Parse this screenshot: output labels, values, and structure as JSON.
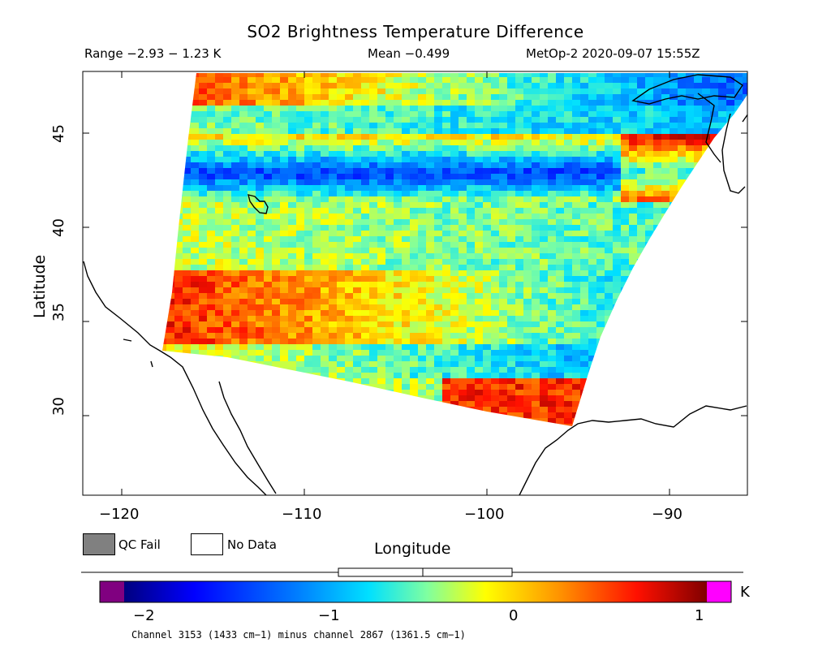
{
  "title": "SO2 Brightness Temperature Difference",
  "subtitle": {
    "range": "Range −2.93 − 1.23 K",
    "mean": "Mean −0.499",
    "satellite_time": "MetOp-2 2020-09-07 15:55Z"
  },
  "axes": {
    "xlabel": "Longitude",
    "ylabel": "Latitude",
    "x_ticks": [
      "−120",
      "−110",
      "−100",
      "−90"
    ],
    "y_ticks": [
      "30",
      "35",
      "40",
      "45"
    ]
  },
  "legend": {
    "qc_fail": "QC Fail",
    "no_data": "No Data",
    "qc_fail_color": "#808080",
    "no_data_color": "#ffffff"
  },
  "colorbar": {
    "unit": "K",
    "tick_labels": [
      "−2",
      "−1",
      "0",
      "1"
    ],
    "low_out_of_range_color": "#800080",
    "high_out_of_range_color": "#ff00ff"
  },
  "footnote": "Channel 3153 (1433 cm−1) minus channel 2867 (1361.5 cm−1)"
}
